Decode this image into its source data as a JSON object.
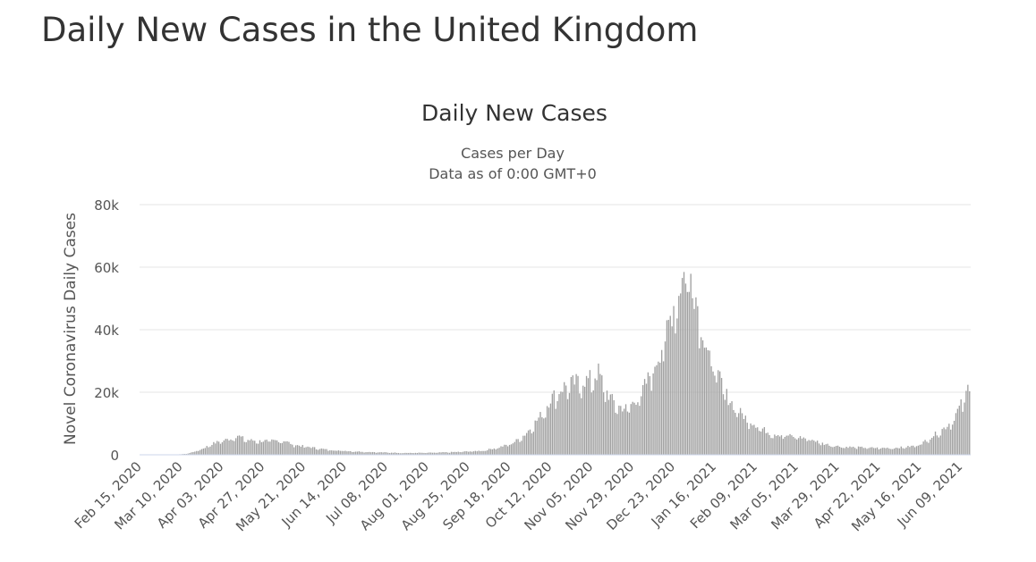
{
  "page": {
    "title": "Daily New Cases in the United Kingdom"
  },
  "chart_data": {
    "type": "bar",
    "title": "Daily New Cases",
    "subtitle": "Cases per Day",
    "subtitle2": "Data as of 0:00 GMT+0",
    "ylabel": "Novel Coronavirus Daily Cases",
    "xlabel": "",
    "ylim": [
      0,
      80000
    ],
    "yticks": [
      0,
      20000,
      40000,
      60000,
      80000
    ],
    "ytick_labels": [
      "0",
      "20k",
      "40k",
      "60k",
      "80k"
    ],
    "xtick_labels": [
      "Feb 15, 2020",
      "Mar 10, 2020",
      "Apr 03, 2020",
      "Apr 27, 2020",
      "May 21, 2020",
      "Jun 14, 2020",
      "Jul 08, 2020",
      "Aug 01, 2020",
      "Aug 25, 2020",
      "Sep 18, 2020",
      "Oct 12, 2020",
      "Nov 05, 2020",
      "Nov 29, 2020",
      "Dec 23, 2020",
      "Jan 16, 2021",
      "Feb 09, 2021",
      "Mar 05, 2021",
      "Mar 29, 2021",
      "Apr 22, 2021",
      "May 16, 2021",
      "Jun 09, 2021"
    ],
    "start_date": "Feb 15, 2020",
    "days_per_tick": 24,
    "bar_color": "#a0a0a0",
    "grid": true,
    "series": [
      {
        "name": "Daily Cases",
        "anchors": [
          [
            0,
            0
          ],
          [
            20,
            0
          ],
          [
            28,
            400
          ],
          [
            36,
            1800
          ],
          [
            42,
            3500
          ],
          [
            48,
            4600
          ],
          [
            52,
            5000
          ],
          [
            57,
            6200
          ],
          [
            62,
            4800
          ],
          [
            70,
            4400
          ],
          [
            76,
            4500
          ],
          [
            84,
            4600
          ],
          [
            90,
            3200
          ],
          [
            100,
            2400
          ],
          [
            110,
            1600
          ],
          [
            125,
            1100
          ],
          [
            140,
            800
          ],
          [
            155,
            600
          ],
          [
            170,
            650
          ],
          [
            185,
            900
          ],
          [
            200,
            1300
          ],
          [
            210,
            2400
          ],
          [
            218,
            3800
          ],
          [
            225,
            6500
          ],
          [
            232,
            11000
          ],
          [
            236,
            14000
          ],
          [
            240,
            18000
          ],
          [
            244,
            20000
          ],
          [
            248,
            22000
          ],
          [
            256,
            23500
          ],
          [
            262,
            24000
          ],
          [
            266,
            25500
          ],
          [
            268,
            26500
          ],
          [
            272,
            21000
          ],
          [
            276,
            17500
          ],
          [
            280,
            15500
          ],
          [
            284,
            15000
          ],
          [
            288,
            16500
          ],
          [
            292,
            19000
          ],
          [
            296,
            23000
          ],
          [
            300,
            28000
          ],
          [
            304,
            33000
          ],
          [
            308,
            40000
          ],
          [
            312,
            48000
          ],
          [
            316,
            55000
          ],
          [
            320,
            60000
          ],
          [
            322,
            58000
          ],
          [
            326,
            48000
          ],
          [
            330,
            38000
          ],
          [
            334,
            30000
          ],
          [
            338,
            25000
          ],
          [
            344,
            18000
          ],
          [
            350,
            14000
          ],
          [
            356,
            11000
          ],
          [
            362,
            9000
          ],
          [
            368,
            7000
          ],
          [
            376,
            6300
          ],
          [
            384,
            5800
          ],
          [
            392,
            5000
          ],
          [
            400,
            3500
          ],
          [
            410,
            2600
          ],
          [
            420,
            2400
          ],
          [
            430,
            2200
          ],
          [
            440,
            2200
          ],
          [
            448,
            2500
          ],
          [
            454,
            3000
          ],
          [
            458,
            4000
          ],
          [
            462,
            5500
          ],
          [
            466,
            7000
          ],
          [
            470,
            8500
          ],
          [
            474,
            10500
          ],
          [
            478,
            14000
          ],
          [
            482,
            18000
          ],
          [
            485,
            23000
          ]
        ],
        "values_total_days": 486
      }
    ]
  }
}
